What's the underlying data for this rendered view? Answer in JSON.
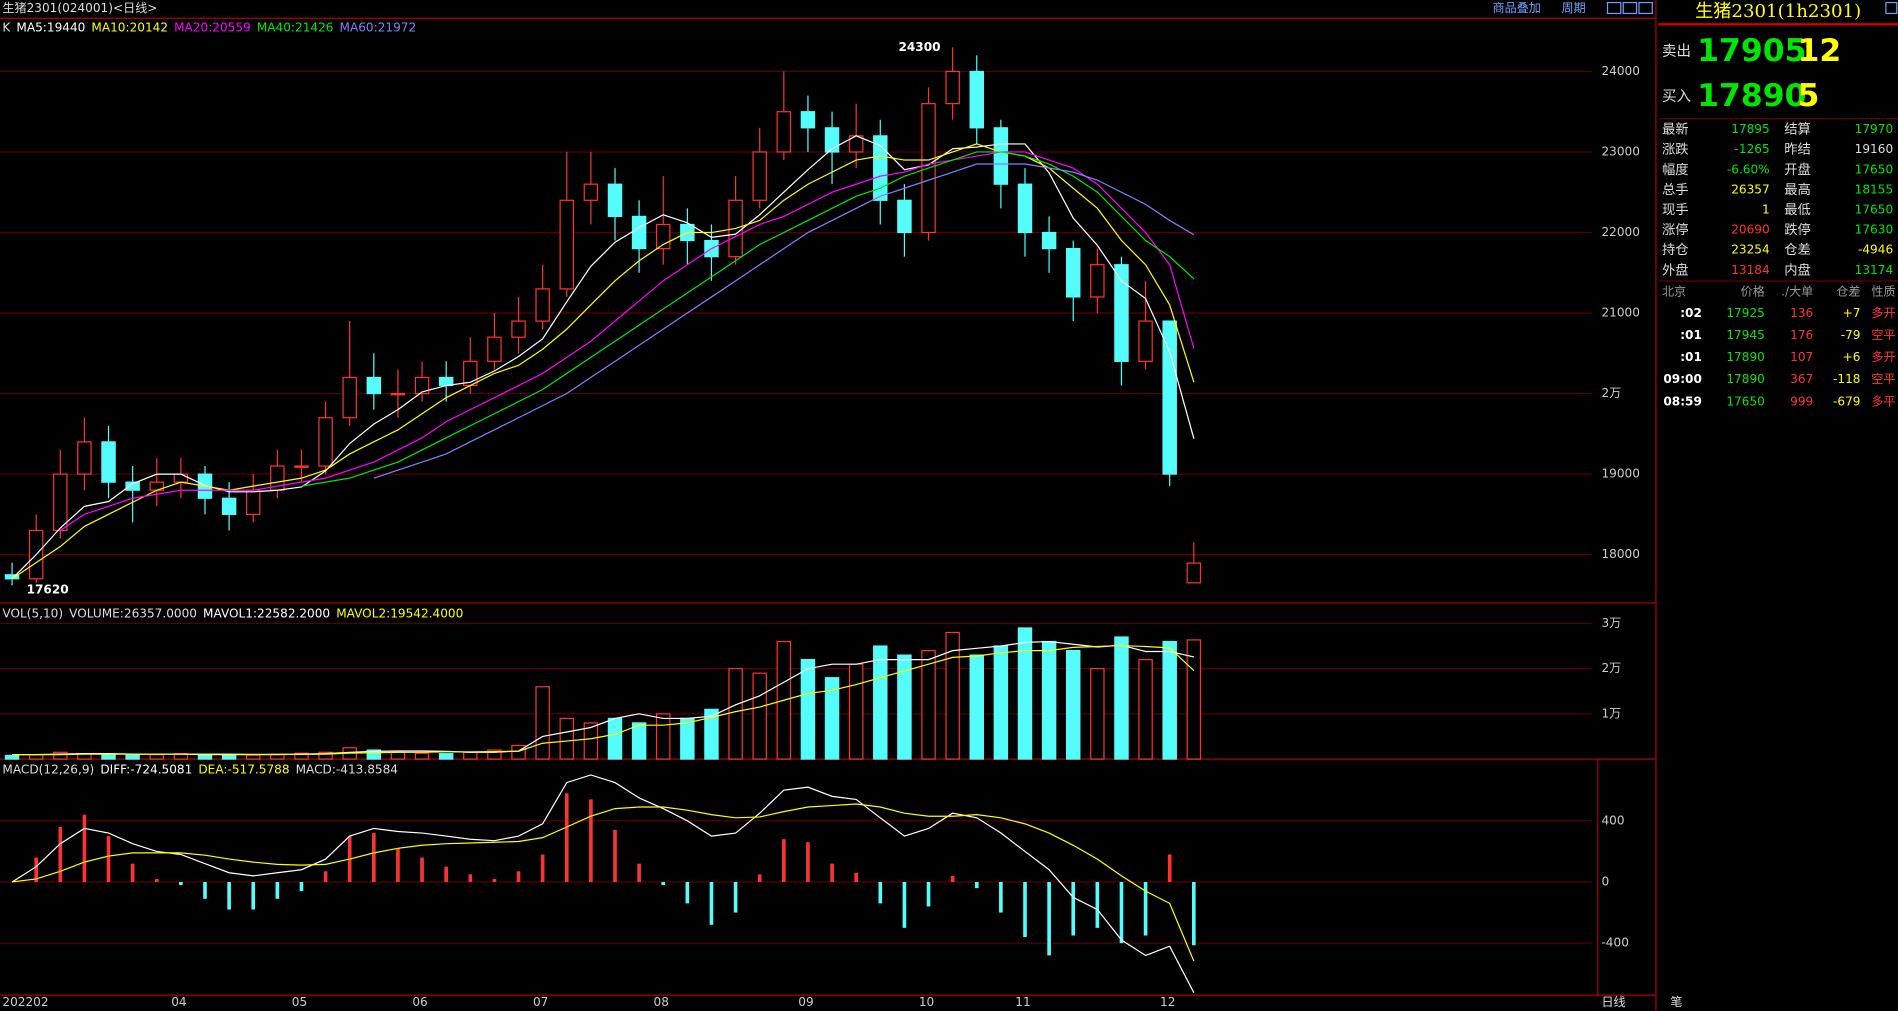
{
  "header": {
    "title": "生猪2301(024001)<日线>",
    "overlay": "商品叠加",
    "period": "周期"
  },
  "chart_data": [
    {
      "type": "candlestick",
      "label": "K",
      "categories": [
        "202202",
        null,
        null,
        null,
        null,
        null,
        null,
        "04",
        null,
        null,
        null,
        null,
        "05",
        null,
        null,
        null,
        null,
        "06",
        null,
        null,
        null,
        null,
        "07",
        null,
        null,
        null,
        null,
        "08",
        null,
        null,
        null,
        null,
        null,
        "09",
        null,
        null,
        null,
        null,
        "10",
        null,
        null,
        null,
        "11",
        null,
        null,
        null,
        null,
        null,
        "12",
        null
      ],
      "open": [
        17750,
        17700,
        18300,
        19000,
        19400,
        18900,
        18800,
        18900,
        19000,
        18700,
        18500,
        18800,
        19100,
        19100,
        19700,
        20200,
        20000,
        20000,
        20200,
        20100,
        20400,
        20700,
        20900,
        21300,
        22400,
        22600,
        22200,
        21800,
        22100,
        21900,
        21700,
        22400,
        23000,
        23500,
        23300,
        23000,
        23200,
        22400,
        22000,
        23600,
        24000,
        23300,
        22600,
        22000,
        21800,
        21200,
        21600,
        20400,
        20900,
        17650
      ],
      "high": [
        17900,
        18500,
        19300,
        19700,
        19600,
        19100,
        19200,
        19200,
        19100,
        18900,
        19000,
        19300,
        19300,
        19900,
        20900,
        20500,
        20300,
        20400,
        20400,
        20700,
        21000,
        21200,
        21600,
        23000,
        23000,
        22800,
        22400,
        22700,
        22300,
        22100,
        22700,
        23300,
        24000,
        23700,
        23500,
        23600,
        23400,
        22600,
        23800,
        24300,
        24200,
        23400,
        22800,
        22200,
        21900,
        21800,
        21700,
        21400,
        20900,
        18155
      ],
      "low": [
        17620,
        17650,
        18200,
        18800,
        18700,
        18400,
        18600,
        18700,
        18500,
        18300,
        18400,
        18700,
        18900,
        19000,
        19600,
        19800,
        19700,
        19900,
        19900,
        20000,
        20300,
        20500,
        20800,
        21200,
        22100,
        21900,
        21500,
        21600,
        21600,
        21400,
        21600,
        22300,
        22900,
        23000,
        22600,
        22800,
        22100,
        21700,
        21900,
        23400,
        23100,
        22300,
        21700,
        21500,
        20900,
        21000,
        20100,
        20300,
        18850,
        17650
      ],
      "close": [
        17700,
        18300,
        19000,
        19400,
        18900,
        18800,
        18900,
        19000,
        18700,
        18500,
        18800,
        19100,
        19100,
        19700,
        20200,
        20000,
        20000,
        20200,
        20100,
        20400,
        20700,
        20900,
        21300,
        22400,
        22600,
        22200,
        21800,
        22100,
        21900,
        21700,
        22400,
        23000,
        23500,
        23300,
        23000,
        23200,
        22400,
        22000,
        23600,
        24000,
        23300,
        22600,
        22000,
        21800,
        21200,
        21600,
        20400,
        20900,
        19000,
        17895
      ],
      "up_color": "#ff3232",
      "down_color": "#54fcfc",
      "series": [
        {
          "legend": "MA5:19440",
          "color": "#ffffff",
          "values": [
            17700,
            18000,
            18330,
            18600,
            18660,
            18880,
            19000,
            19000,
            18860,
            18780,
            18780,
            18800,
            18840,
            19040,
            19380,
            19620,
            19800,
            20020,
            20100,
            20140,
            20280,
            20460,
            20680,
            21140,
            21580,
            21880,
            22060,
            22220,
            22120,
            21940,
            21980,
            22220,
            22500,
            22780,
            23040,
            23200,
            23080,
            22780,
            22840,
            23040,
            23060,
            23100,
            23100,
            22740,
            22180,
            21840,
            21400,
            21180,
            20520,
            19440
          ]
        },
        {
          "legend": "MA10:20142",
          "color": "#ffff00",
          "values": [
            17700,
            17900,
            18100,
            18350,
            18500,
            18650,
            18800,
            18900,
            18850,
            18800,
            18850,
            18900,
            18950,
            19050,
            19250,
            19400,
            19550,
            19750,
            19950,
            20100,
            20250,
            20350,
            20550,
            20800,
            21100,
            21400,
            21650,
            21850,
            22000,
            22000,
            22050,
            22150,
            22400,
            22600,
            22750,
            22900,
            22950,
            22900,
            22900,
            23000,
            23100,
            23000,
            22950,
            22800,
            22550,
            22300,
            21900,
            21600,
            21100,
            20142
          ]
        },
        {
          "legend": "MA20:20559",
          "color": "#ff00ff",
          "values": [
            null,
            null,
            18300,
            18500,
            18600,
            18700,
            18750,
            18800,
            18800,
            18800,
            18800,
            18850,
            18900,
            18950,
            19050,
            19150,
            19300,
            19450,
            19650,
            19800,
            19950,
            20100,
            20250,
            20450,
            20650,
            20900,
            21150,
            21400,
            21600,
            21800,
            21950,
            22100,
            22200,
            22350,
            22500,
            22600,
            22700,
            22750,
            22850,
            22900,
            22950,
            23000,
            23000,
            22900,
            22800,
            22600,
            22300,
            22000,
            21600,
            20559
          ]
        },
        {
          "legend": "MA40:21426",
          "color": "#00e600",
          "values": [
            null,
            null,
            null,
            null,
            null,
            null,
            null,
            null,
            null,
            null,
            null,
            null,
            18850,
            18900,
            18950,
            19050,
            19150,
            19300,
            19450,
            19600,
            19750,
            19900,
            20050,
            20250,
            20450,
            20650,
            20850,
            21050,
            21250,
            21450,
            21650,
            21850,
            22000,
            22150,
            22300,
            22450,
            22550,
            22700,
            22800,
            22900,
            23000,
            23000,
            22950,
            22850,
            22700,
            22500,
            22200,
            21900,
            21700,
            21426
          ]
        },
        {
          "legend": "MA60:21972",
          "color": "#8080ff",
          "values": [
            null,
            null,
            null,
            null,
            null,
            null,
            null,
            null,
            null,
            null,
            null,
            null,
            null,
            null,
            null,
            18950,
            19050,
            19150,
            19250,
            19400,
            19550,
            19700,
            19850,
            20000,
            20200,
            20400,
            20600,
            20800,
            21000,
            21200,
            21400,
            21600,
            21800,
            22000,
            22150,
            22300,
            22450,
            22550,
            22650,
            22750,
            22850,
            22850,
            22850,
            22800,
            22750,
            22650,
            22500,
            22350,
            22150,
            21972
          ]
        }
      ],
      "ylim": [
        17400,
        24630
      ],
      "yticks": [
        18000,
        19000,
        {
          "value": 20000,
          "label": "2万"
        },
        21000,
        22000,
        23000,
        24000
      ]
    },
    {
      "type": "bar",
      "title": "VOL(5,10)",
      "volume_label": "VOLUME:26357.0000",
      "values": [
        800,
        1000,
        1500,
        1200,
        1000,
        900,
        1000,
        1200,
        1000,
        800,
        900,
        1100,
        1300,
        1500,
        2500,
        2000,
        1500,
        1300,
        1200,
        1500,
        2000,
        3000,
        16000,
        9000,
        8000,
        9000,
        8000,
        10000,
        9000,
        11000,
        20000,
        19000,
        26000,
        22000,
        18000,
        21000,
        25000,
        23000,
        24000,
        28000,
        23000,
        25000,
        29000,
        26000,
        24000,
        20000,
        27000,
        22000,
        26000,
        26357
      ],
      "series": [
        {
          "legend": "MAVOL1:22582.2000",
          "color": "#ffffff",
          "values": [
            1000,
            1000,
            1100,
            1200,
            1200,
            1100,
            1100,
            1100,
            1000,
            1000,
            1000,
            1000,
            1100,
            1200,
            1500,
            1700,
            1800,
            1800,
            1700,
            1500,
            1500,
            1800,
            5000,
            6000,
            7000,
            9000,
            10000,
            9000,
            9000,
            9500,
            12000,
            14000,
            17000,
            20000,
            21000,
            21000,
            22000,
            22000,
            22000,
            24000,
            24500,
            25000,
            25800,
            26000,
            25400,
            24800,
            25200,
            23800,
            23800,
            22582.2
          ]
        },
        {
          "legend": "MAVOL2:19542.4000",
          "color": "#ffff00",
          "values": [
            1000,
            1000,
            1000,
            1100,
            1100,
            1100,
            1100,
            1100,
            1100,
            1100,
            1050,
            1050,
            1050,
            1100,
            1300,
            1400,
            1500,
            1500,
            1600,
            1600,
            1650,
            1750,
            3500,
            4000,
            4500,
            5500,
            7500,
            7500,
            8000,
            9200,
            10500,
            11500,
            13000,
            14500,
            15200,
            16500,
            18000,
            19500,
            21000,
            22500,
            22800,
            23500,
            24000,
            24000,
            24700,
            24900,
            25100,
            24900,
            24600,
            19542.4
          ]
        }
      ],
      "ylim": [
        0,
        34000
      ],
      "yticks": [
        {
          "value": 10000,
          "label": "1万"
        },
        {
          "value": 20000,
          "label": "2万"
        },
        {
          "value": 30000,
          "label": "3万"
        }
      ]
    },
    {
      "type": "macd",
      "title": "MACD(12,26,9)",
      "series": [
        {
          "legend": "DIFF:-724.5081",
          "color": "#ffffff",
          "values": [
            0,
            100,
            250,
            350,
            320,
            250,
            200,
            180,
            120,
            60,
            40,
            60,
            80,
            150,
            300,
            350,
            330,
            320,
            300,
            280,
            270,
            300,
            380,
            650,
            700,
            650,
            550,
            480,
            400,
            300,
            320,
            450,
            600,
            620,
            560,
            540,
            420,
            300,
            350,
            450,
            420,
            320,
            200,
            80,
            -100,
            -180,
            -380,
            -480,
            -420,
            -724.5081
          ]
        },
        {
          "legend": "DEA:-517.5788",
          "color": "#ffff00",
          "values": [
            0,
            20,
            70,
            130,
            170,
            190,
            190,
            190,
            175,
            150,
            130,
            115,
            110,
            115,
            150,
            190,
            220,
            240,
            250,
            255,
            260,
            265,
            290,
            360,
            430,
            480,
            490,
            490,
            470,
            440,
            420,
            425,
            460,
            490,
            500,
            510,
            490,
            450,
            430,
            430,
            440,
            420,
            380,
            320,
            240,
            150,
            40,
            -60,
            -140,
            -517.5788
          ]
        }
      ],
      "histogram": {
        "legend": "MACD:-413.8584",
        "values": [
          0,
          160,
          360,
          440,
          300,
          120,
          20,
          -20,
          -110,
          -180,
          -180,
          -110,
          -60,
          70,
          300,
          320,
          220,
          160,
          100,
          50,
          20,
          70,
          180,
          580,
          540,
          340,
          120,
          -20,
          -140,
          -280,
          -200,
          50,
          280,
          260,
          120,
          60,
          -140,
          -300,
          -160,
          40,
          -40,
          -200,
          -360,
          -480,
          -350,
          -300,
          -400,
          -350,
          180,
          -413.8584
        ]
      },
      "ylim": [
        -740,
        780
      ],
      "yticks": [
        400,
        0,
        -400
      ]
    }
  ],
  "quote": {
    "title": "生猪2301(1h2301)",
    "ask": {
      "label": "卖出",
      "price": "17905",
      "size": "12"
    },
    "bid": {
      "label": "买入",
      "price": "17890",
      "size": "5"
    },
    "rows": [
      [
        "最新",
        "17895",
        "结算",
        "17970"
      ],
      [
        "涨跌",
        "-1265",
        "昨结",
        "19160"
      ],
      [
        "幅度",
        "-6.60%",
        "开盘",
        "17650"
      ],
      [
        "总手",
        "26357",
        "最高",
        "18155"
      ],
      [
        "现手",
        "1",
        "最低",
        "17650"
      ],
      [
        "涨停",
        "20690",
        "跌停",
        "17630"
      ],
      [
        "持仓",
        "23254",
        "仓差",
        "-4946"
      ],
      [
        "外盘",
        "13184",
        "内盘",
        "13174"
      ]
    ],
    "value_colors": [
      [
        "#00e600",
        "#00e600"
      ],
      [
        "#00e600",
        "#dddddd"
      ],
      [
        "#00e600",
        "#00e600"
      ],
      [
        "#ffff00",
        "#00e600"
      ],
      [
        "#ffff00",
        "#00e600"
      ],
      [
        "#ff3232",
        "#00e600"
      ],
      [
        "#ffff00",
        "#ffff00"
      ],
      [
        "#ff3232",
        "#00e600"
      ]
    ]
  },
  "trades": {
    "header": [
      "北京",
      "价格",
      "./大单",
      "仓差",
      "性质"
    ],
    "rows": [
      [
        ":02",
        "17925",
        "136",
        "+7",
        "多开"
      ],
      [
        ":01",
        "17945",
        "176",
        "-79",
        "空平"
      ],
      [
        ":01",
        "17890",
        "107",
        "+6",
        "多开"
      ],
      [
        "09:00",
        "17890",
        "367",
        "-118",
        "空平"
      ],
      [
        "08:59",
        "17650",
        "999",
        "-679",
        "多平"
      ]
    ]
  },
  "footer": {
    "daily": "日线",
    "pen": "笔"
  }
}
